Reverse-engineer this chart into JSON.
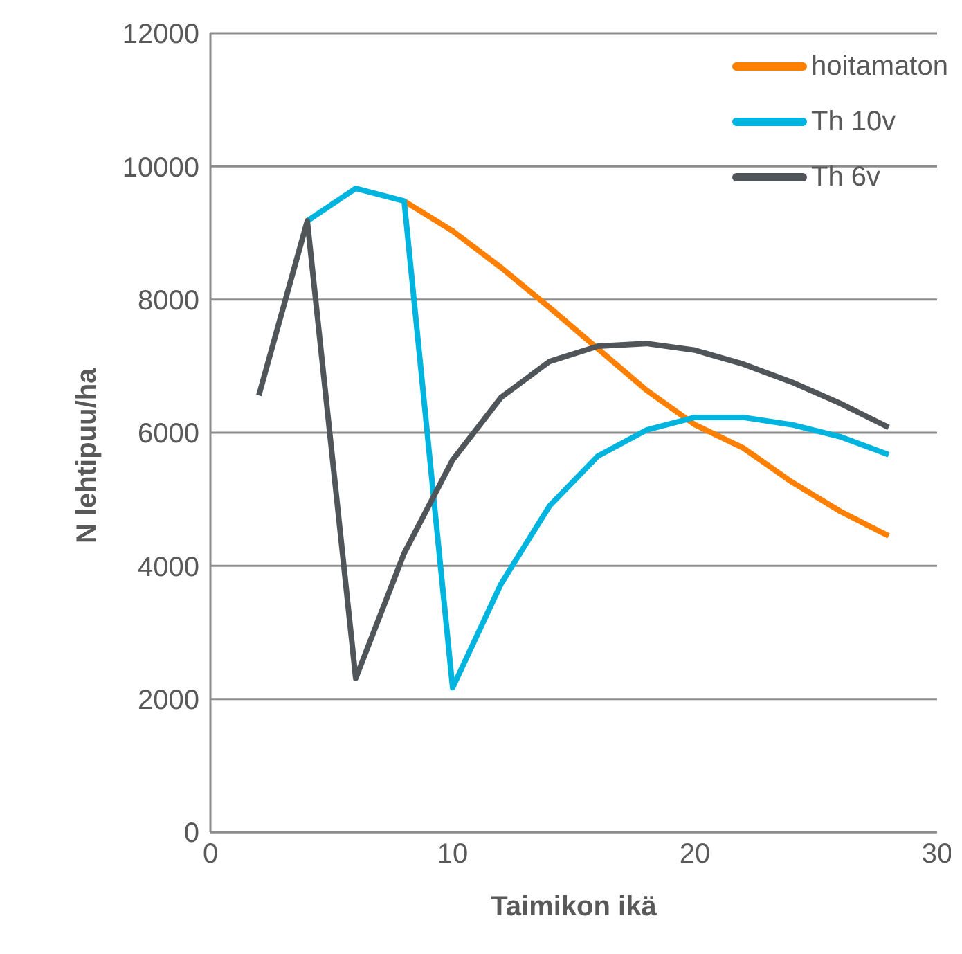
{
  "chart_data": {
    "type": "line",
    "xlabel": "Taimikon ikä",
    "ylabel": "N lehtipuu/ha",
    "x": [
      2,
      4,
      6,
      8,
      10,
      12,
      14,
      16,
      18,
      20,
      22,
      24,
      26,
      28
    ],
    "series": [
      {
        "name": "hoitamaton",
        "color": "#ff7f00",
        "values": [
          null,
          null,
          null,
          9480,
          9030,
          8480,
          7880,
          7260,
          6640,
          6120,
          5770,
          5260,
          4820,
          4450
        ]
      },
      {
        "name": "Th 10v",
        "color": "#00b4e0",
        "values": [
          null,
          9180,
          9670,
          9480,
          2170,
          3730,
          4900,
          5650,
          6040,
          6230,
          6230,
          6120,
          5940,
          5670
        ]
      },
      {
        "name": "Th 6v",
        "color": "#50555a",
        "values": [
          6560,
          9180,
          2310,
          4190,
          5590,
          6530,
          7070,
          7300,
          7340,
          7240,
          7030,
          6760,
          6440,
          6080
        ]
      }
    ],
    "xlim": [
      0,
      30
    ],
    "xticks": [
      0,
      10,
      20,
      30
    ],
    "ylim": [
      0,
      12000
    ],
    "yticks": [
      0,
      2000,
      4000,
      6000,
      8000,
      10000,
      12000
    ],
    "grid": "y",
    "legend": "top right",
    "marker": "none",
    "line_style": "solid"
  }
}
